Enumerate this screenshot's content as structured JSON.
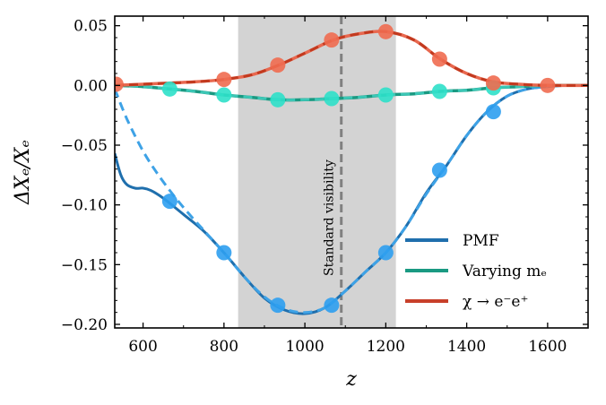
{
  "chart_data": {
    "type": "line",
    "xlabel": "z",
    "ylabel": "ΔXₑ/Xₑ",
    "xlim": [
      530,
      1700
    ],
    "ylim": [
      -0.203,
      0.058
    ],
    "xticks": [
      600,
      800,
      1000,
      1200,
      1400,
      1600
    ],
    "xtick_labels": [
      "600",
      "800",
      "1000",
      "1200",
      "1400",
      "1600"
    ],
    "yticks": [
      0.05,
      0.0,
      -0.05,
      -0.1,
      -0.15,
      -0.2
    ],
    "ytick_labels": [
      "0.05",
      "0.00",
      "−0.05",
      "−0.10",
      "−0.15",
      "−0.20"
    ],
    "shaded_region": {
      "x_range": [
        835,
        1225
      ],
      "color": "#d3d3d3"
    },
    "reference_line": {
      "x": 1090,
      "label": "Standard visibility",
      "color": "#808080"
    },
    "legend": {
      "position": "lower-right",
      "entries": [
        {
          "label": "PMF",
          "color": "#1f6fad"
        },
        {
          "label": "Varying mₑ",
          "color": "#1a9a82"
        },
        {
          "label": "χ → e⁻e⁺",
          "color": "#c8402a"
        }
      ]
    },
    "series": [
      {
        "name": "PMF",
        "line_color": "#1f6fad",
        "x": [
          530,
          545,
          560,
          580,
          600,
          620,
          640,
          660,
          700,
          750,
          800,
          850,
          900,
          950,
          1000,
          1050,
          1100,
          1150,
          1200,
          1250,
          1300,
          1350,
          1400,
          1450,
          1500,
          1550,
          1600,
          1650,
          1700
        ],
        "y": [
          -0.057,
          -0.075,
          -0.083,
          -0.086,
          -0.086,
          -0.088,
          -0.092,
          -0.097,
          -0.108,
          -0.122,
          -0.14,
          -0.16,
          -0.178,
          -0.188,
          -0.191,
          -0.186,
          -0.172,
          -0.156,
          -0.14,
          -0.118,
          -0.09,
          -0.067,
          -0.042,
          -0.022,
          -0.009,
          -0.003,
          -0.001,
          0.0,
          0.0
        ]
      },
      {
        "name": "PMF approximation",
        "line_color": "#3ea2e6",
        "dashed": true,
        "x": [
          530,
          560,
          600,
          640,
          680,
          720,
          760,
          800,
          850,
          900,
          950,
          1000,
          1050,
          1100,
          1150,
          1200,
          1250,
          1300,
          1350,
          1400,
          1450,
          1500,
          1550,
          1600
        ],
        "y": [
          -0.003,
          -0.028,
          -0.055,
          -0.076,
          -0.094,
          -0.11,
          -0.125,
          -0.14,
          -0.16,
          -0.177,
          -0.187,
          -0.19,
          -0.186,
          -0.172,
          -0.156,
          -0.14,
          -0.118,
          -0.091,
          -0.067,
          -0.042,
          -0.022,
          -0.009,
          -0.003,
          -0.001
        ]
      },
      {
        "name": "Varying mₑ",
        "line_color": "#1a9a82",
        "dash_color": "#3cc7b6",
        "x": [
          530,
          600,
          665,
          730,
          800,
          870,
          935,
          1000,
          1070,
          1130,
          1200,
          1270,
          1335,
          1400,
          1465,
          1530,
          1600,
          1700
        ],
        "y": [
          0.0,
          -0.001,
          -0.003,
          -0.005,
          -0.008,
          -0.01,
          -0.012,
          -0.012,
          -0.011,
          -0.01,
          -0.008,
          -0.007,
          -0.005,
          -0.004,
          -0.002,
          -0.001,
          0.0,
          0.0
        ]
      },
      {
        "name": "χ → e⁻e⁺",
        "line_color": "#e8684f",
        "dash_color": "#c23a1f",
        "x": [
          530,
          600,
          665,
          730,
          800,
          870,
          935,
          1000,
          1070,
          1130,
          1200,
          1270,
          1335,
          1400,
          1465,
          1530,
          1600,
          1700
        ],
        "y": [
          0.0,
          0.001,
          0.002,
          0.003,
          0.005,
          0.009,
          0.017,
          0.027,
          0.038,
          0.043,
          0.045,
          0.038,
          0.022,
          0.01,
          0.003,
          0.001,
          0.0,
          0.0
        ]
      }
    ],
    "markers": [
      {
        "series": "PMF",
        "color": "#2d9ff0",
        "x": [
          666,
          800,
          933,
          1066,
          1200,
          1333,
          1466
        ],
        "y": [
          -0.097,
          -0.14,
          -0.184,
          -0.184,
          -0.14,
          -0.071,
          -0.022
        ]
      },
      {
        "series": "Varying mₑ",
        "color": "#2ee0c9",
        "x": [
          666,
          800,
          933,
          1066,
          1200,
          1333,
          1466
        ],
        "y": [
          -0.003,
          -0.008,
          -0.012,
          -0.011,
          -0.008,
          -0.005,
          -0.002
        ]
      },
      {
        "series": "χ → e⁻e⁺",
        "color": "#ef6c50",
        "x": [
          533,
          800,
          933,
          1066,
          1200,
          1333,
          1466,
          1600
        ],
        "y": [
          0.001,
          0.005,
          0.017,
          0.038,
          0.045,
          0.022,
          0.002,
          0.0
        ]
      }
    ]
  }
}
